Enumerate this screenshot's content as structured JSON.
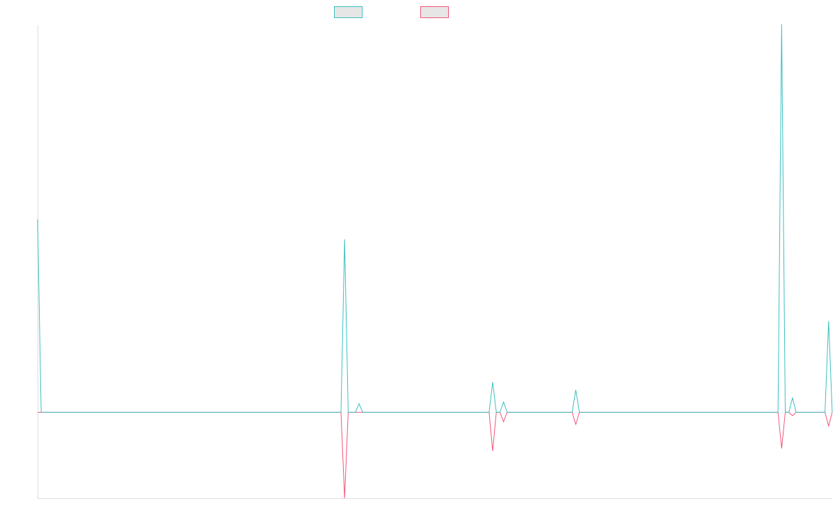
{
  "colors": {
    "series_1": "#3bbfbf",
    "series_2": "#f2557a",
    "legend_fill": "#e6e6e6",
    "axis": "#dddddd"
  },
  "chart_data": {
    "type": "line",
    "title": "",
    "xlabel": "",
    "ylabel": "",
    "x_range": [
      0,
      220
    ],
    "ylim": [
      -100,
      450
    ],
    "grid": false,
    "legend_position": "top-center",
    "series": [
      {
        "color": "#3bbfbf",
        "points": [
          [
            0,
            224
          ],
          [
            1,
            0
          ],
          [
            84,
            0
          ],
          [
            85,
            201
          ],
          [
            86,
            0
          ],
          [
            88,
            0
          ],
          [
            89,
            10
          ],
          [
            90,
            0
          ],
          [
            125,
            0
          ],
          [
            126,
            35
          ],
          [
            127,
            0
          ],
          [
            128,
            0
          ],
          [
            129,
            12
          ],
          [
            130,
            0
          ],
          [
            148,
            0
          ],
          [
            149,
            26
          ],
          [
            150,
            0
          ],
          [
            205,
            0
          ],
          [
            206,
            451
          ],
          [
            207,
            0
          ],
          [
            208,
            0
          ],
          [
            209,
            17
          ],
          [
            210,
            0
          ],
          [
            218,
            0
          ],
          [
            219,
            106
          ],
          [
            220,
            0
          ]
        ]
      },
      {
        "color": "#f2557a",
        "points": [
          [
            0,
            0
          ],
          [
            84,
            0
          ],
          [
            85,
            -100
          ],
          [
            86,
            0
          ],
          [
            125,
            0
          ],
          [
            126,
            -45
          ],
          [
            127,
            0
          ],
          [
            128,
            0
          ],
          [
            129,
            -11
          ],
          [
            130,
            0
          ],
          [
            148,
            0
          ],
          [
            149,
            -14
          ],
          [
            150,
            0
          ],
          [
            205,
            0
          ],
          [
            206,
            -42
          ],
          [
            207,
            0
          ],
          [
            208,
            0
          ],
          [
            209,
            -4
          ],
          [
            210,
            0
          ],
          [
            218,
            0
          ],
          [
            219,
            -16
          ],
          [
            220,
            0
          ]
        ]
      }
    ]
  }
}
